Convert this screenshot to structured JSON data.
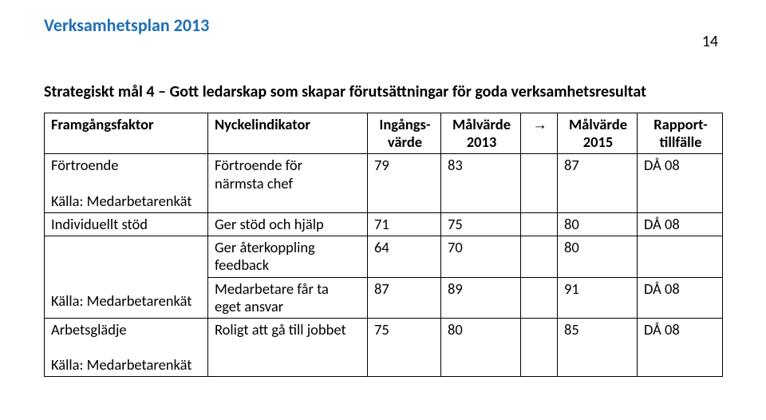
{
  "doc_title": "Verksamhetsplan 2013",
  "page_number": "14",
  "heading": "Strategiskt mål 4 – Gott ledarskap som skapar förutsättningar för goda verksamhetsresultat",
  "table": {
    "headers": {
      "c0": "Framgångsfaktor",
      "c1": "Nyckelindikator",
      "c2a": "Ingångs-",
      "c2b": "värde",
      "c3a": "Målvärde",
      "c3b": "2013",
      "c4": "→",
      "c5a": "Målvärde",
      "c5b": "2015",
      "c6a": "Rapport-",
      "c6b": "tillfälle"
    },
    "rows": [
      {
        "c0_lines": [
          "Förtroende",
          "",
          "Källa: Medarbetarenkät"
        ],
        "c1_lines": [
          "Förtroende för",
          "närmsta chef"
        ],
        "c2": "79",
        "c3": "83",
        "c4": "",
        "c5": "87",
        "c6": "DÅ 08"
      },
      {
        "c0_lines": [
          "Individuellt stöd"
        ],
        "c1_lines": [
          "Ger stöd och hjälp"
        ],
        "c2": "71",
        "c3": "75",
        "c4": "",
        "c5": "80",
        "c6": "DÅ 08"
      },
      {
        "merge0": true,
        "c0_lines": [
          "",
          "",
          "",
          "Källa: Medarbetarenkät"
        ],
        "sub": [
          {
            "c1_lines": [
              "Ger återkoppling",
              "feedback"
            ],
            "c2": "64",
            "c3": "70",
            "c4": "",
            "c5": "80",
            "c6": ""
          },
          {
            "c1_lines": [
              "Medarbetare får ta",
              "eget ansvar"
            ],
            "c2": "87",
            "c3": "89",
            "c4": "",
            "c5": "91",
            "c6": "DÅ 08"
          }
        ]
      },
      {
        "c0_lines": [
          "Arbetsglädje",
          "",
          "Källa: Medarbetarenkät"
        ],
        "c1_lines": [
          "Roligt att gå till jobbet"
        ],
        "c2": "75",
        "c3": "80",
        "c4": "",
        "c5": "85",
        "c6": "DÅ 08"
      }
    ]
  },
  "colors": {
    "title": "#1f6fb4",
    "text": "#000000",
    "border": "#000000",
    "bg": "#ffffff"
  }
}
